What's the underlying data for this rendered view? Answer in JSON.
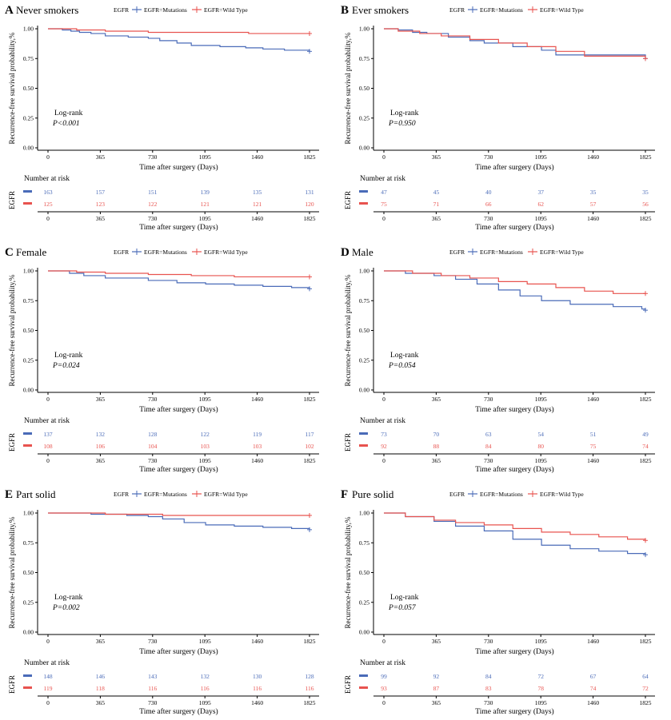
{
  "colors": {
    "mutations": "#4a6bb8",
    "wildtype": "#e8534f",
    "axis": "#000000"
  },
  "legend": {
    "title": "EGFR",
    "mutations_label": "EGFR=Mutations",
    "wildtype_label": "EGFR=Wild Type"
  },
  "common": {
    "xlabel": "Time after surgery (Days)",
    "ylabel": "Recurrence-free survival probability,%",
    "xticks": [
      "0",
      "365",
      "730",
      "1095",
      "1460",
      "1825"
    ],
    "yticks": [
      "0.00",
      "0.25",
      "0.50",
      "0.75",
      "1.00"
    ],
    "logrank_label": "Log-rank",
    "risk_title": "Number at risk",
    "risk_ylabel": "EGFR"
  },
  "chart_data": [
    {
      "type": "line",
      "letter": "A",
      "title": "Never smokers",
      "p_text": "P<0.001",
      "xlim": [
        0,
        1825
      ],
      "ylim": [
        0,
        1
      ],
      "series": [
        {
          "name": "EGFR=Mutations",
          "x": [
            0,
            100,
            160,
            220,
            300,
            400,
            560,
            700,
            780,
            900,
            1000,
            1200,
            1380,
            1500,
            1650,
            1825
          ],
          "y": [
            1.0,
            0.99,
            0.98,
            0.97,
            0.96,
            0.94,
            0.93,
            0.92,
            0.9,
            0.88,
            0.86,
            0.85,
            0.84,
            0.83,
            0.82,
            0.81
          ]
        },
        {
          "name": "EGFR=Wild Type",
          "x": [
            0,
            200,
            400,
            700,
            1000,
            1400,
            1825
          ],
          "y": [
            1.0,
            0.99,
            0.98,
            0.97,
            0.97,
            0.96,
            0.96
          ]
        }
      ],
      "risk": {
        "mutations": [
          "163",
          "157",
          "151",
          "139",
          "135",
          "131"
        ],
        "wildtype": [
          "125",
          "123",
          "122",
          "121",
          "121",
          "120"
        ]
      }
    },
    {
      "type": "line",
      "letter": "B",
      "title": "Ever smokers",
      "p_text": "P=0.950",
      "xlim": [
        0,
        1825
      ],
      "ylim": [
        0,
        1
      ],
      "series": [
        {
          "name": "EGFR=Mutations",
          "x": [
            0,
            100,
            200,
            300,
            450,
            600,
            700,
            900,
            1100,
            1200,
            1825
          ],
          "y": [
            1.0,
            0.99,
            0.97,
            0.96,
            0.93,
            0.9,
            0.88,
            0.85,
            0.82,
            0.78,
            0.75
          ]
        },
        {
          "name": "EGFR=Wild Type",
          "x": [
            0,
            100,
            250,
            400,
            600,
            800,
            1000,
            1200,
            1400,
            1825
          ],
          "y": [
            1.0,
            0.98,
            0.96,
            0.94,
            0.91,
            0.88,
            0.85,
            0.81,
            0.77,
            0.75
          ]
        }
      ],
      "risk": {
        "mutations": [
          "47",
          "45",
          "40",
          "37",
          "35",
          "35"
        ],
        "wildtype": [
          "75",
          "71",
          "66",
          "62",
          "57",
          "56"
        ]
      }
    },
    {
      "type": "line",
      "letter": "C",
      "title": "Female",
      "p_text": "P=0.024",
      "xlim": [
        0,
        1825
      ],
      "ylim": [
        0,
        1
      ],
      "series": [
        {
          "name": "EGFR=Mutations",
          "x": [
            0,
            150,
            250,
            400,
            700,
            900,
            1100,
            1300,
            1500,
            1700,
            1825
          ],
          "y": [
            1.0,
            0.98,
            0.96,
            0.94,
            0.92,
            0.9,
            0.89,
            0.88,
            0.87,
            0.86,
            0.85
          ]
        },
        {
          "name": "EGFR=Wild Type",
          "x": [
            0,
            200,
            400,
            700,
            1000,
            1300,
            1825
          ],
          "y": [
            1.0,
            0.99,
            0.98,
            0.97,
            0.96,
            0.95,
            0.95
          ]
        }
      ],
      "risk": {
        "mutations": [
          "137",
          "132",
          "128",
          "122",
          "119",
          "117"
        ],
        "wildtype": [
          "108",
          "106",
          "104",
          "103",
          "103",
          "102"
        ]
      }
    },
    {
      "type": "line",
      "letter": "D",
      "title": "Male",
      "p_text": "P=0.054",
      "xlim": [
        0,
        1825
      ],
      "ylim": [
        0,
        1
      ],
      "series": [
        {
          "name": "EGFR=Mutations",
          "x": [
            0,
            150,
            350,
            500,
            650,
            800,
            950,
            1100,
            1300,
            1600,
            1800,
            1825
          ],
          "y": [
            1.0,
            0.98,
            0.96,
            0.93,
            0.89,
            0.84,
            0.79,
            0.75,
            0.72,
            0.7,
            0.68,
            0.67
          ]
        },
        {
          "name": "EGFR=Wild Type",
          "x": [
            0,
            200,
            400,
            600,
            800,
            1000,
            1200,
            1400,
            1600,
            1825
          ],
          "y": [
            1.0,
            0.98,
            0.96,
            0.94,
            0.91,
            0.89,
            0.86,
            0.83,
            0.81,
            0.81
          ]
        }
      ],
      "risk": {
        "mutations": [
          "73",
          "70",
          "63",
          "54",
          "51",
          "49"
        ],
        "wildtype": [
          "92",
          "88",
          "84",
          "80",
          "75",
          "74"
        ]
      }
    },
    {
      "type": "line",
      "letter": "E",
      "title": "Part solid",
      "p_text": "P=0.002",
      "xlim": [
        0,
        1825
      ],
      "ylim": [
        0,
        1
      ],
      "series": [
        {
          "name": "EGFR=Mutations",
          "x": [
            0,
            300,
            550,
            700,
            800,
            950,
            1100,
            1300,
            1500,
            1700,
            1825
          ],
          "y": [
            1.0,
            0.99,
            0.98,
            0.97,
            0.95,
            0.92,
            0.9,
            0.89,
            0.88,
            0.87,
            0.86
          ]
        },
        {
          "name": "EGFR=Wild Type",
          "x": [
            0,
            400,
            800,
            1300,
            1825
          ],
          "y": [
            1.0,
            0.99,
            0.98,
            0.98,
            0.98
          ]
        }
      ],
      "risk": {
        "mutations": [
          "148",
          "146",
          "143",
          "132",
          "130",
          "128"
        ],
        "wildtype": [
          "119",
          "118",
          "116",
          "116",
          "116",
          "116"
        ]
      }
    },
    {
      "type": "line",
      "letter": "F",
      "title": "Pure solid",
      "p_text": "P=0.057",
      "xlim": [
        0,
        1825
      ],
      "ylim": [
        0,
        1
      ],
      "series": [
        {
          "name": "EGFR=Mutations",
          "x": [
            0,
            150,
            350,
            500,
            700,
            900,
            1100,
            1300,
            1500,
            1700,
            1825
          ],
          "y": [
            1.0,
            0.97,
            0.93,
            0.89,
            0.85,
            0.78,
            0.73,
            0.7,
            0.68,
            0.66,
            0.65
          ]
        },
        {
          "name": "EGFR=Wild Type",
          "x": [
            0,
            150,
            350,
            500,
            700,
            900,
            1100,
            1300,
            1500,
            1700,
            1825
          ],
          "y": [
            1.0,
            0.97,
            0.94,
            0.92,
            0.9,
            0.87,
            0.84,
            0.82,
            0.8,
            0.78,
            0.77
          ]
        }
      ],
      "risk": {
        "mutations": [
          "99",
          "92",
          "84",
          "72",
          "67",
          "64"
        ],
        "wildtype": [
          "93",
          "87",
          "83",
          "78",
          "74",
          "72"
        ]
      }
    }
  ]
}
